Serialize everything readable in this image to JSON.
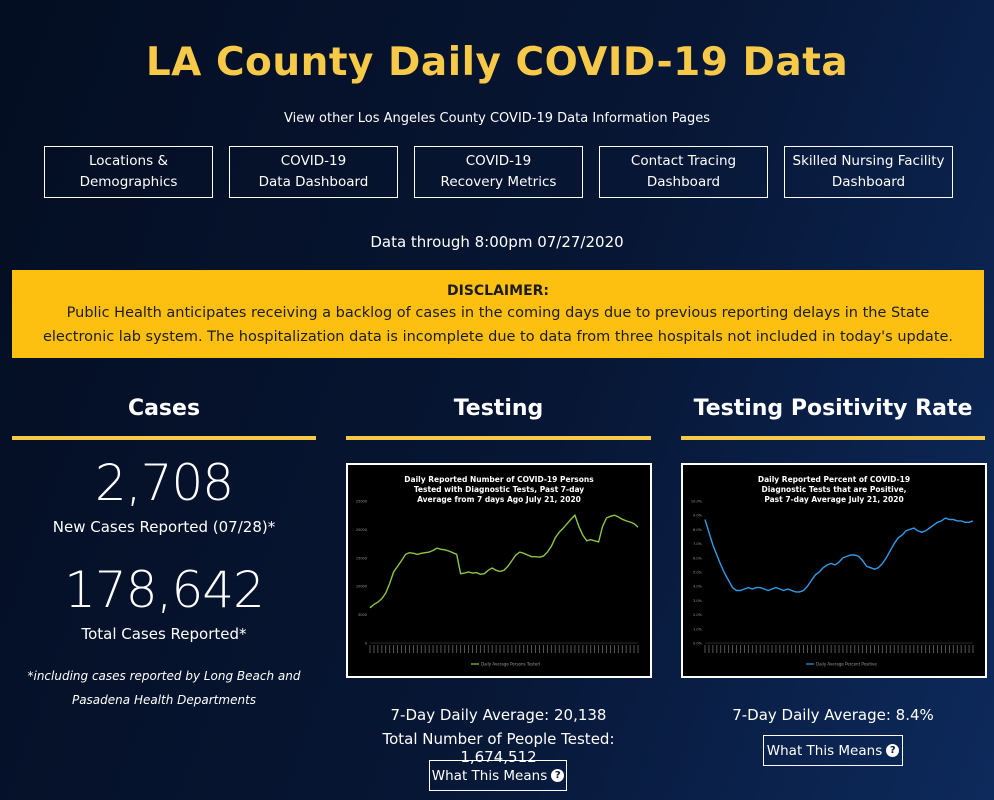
{
  "header": {
    "title": "LA County Daily COVID-19 Data",
    "subtitle": "View other Los Angeles County COVID-19 Data Information Pages"
  },
  "nav": [
    {
      "label": "Locations &\nDemographics"
    },
    {
      "label": "COVID-19\nData Dashboard"
    },
    {
      "label": "COVID-19\nRecovery Metrics"
    },
    {
      "label": "Contact Tracing\nDashboard"
    },
    {
      "label": "Skilled Nursing Facility\nDashboard"
    }
  ],
  "data_through": "Data through 8:00pm 07/27/2020",
  "disclaimer": {
    "heading": "DISCLAIMER:",
    "body": "Public Health anticipates receiving a backlog of cases in the coming days due to previous reporting delays in the State electronic lab system. The hospitalization data is incomplete due to data from three hospitals not included in today's update."
  },
  "cases": {
    "title": "Cases",
    "new_cases": "2,708",
    "new_cases_label": "New Cases Reported (07/28)*",
    "total_cases": "178,642",
    "total_cases_label": "Total Cases Reported*",
    "footnote": "*including cases reported by Long Beach and Pasadena Health Departments"
  },
  "testing": {
    "title": "Testing",
    "avg": "7-Day Daily Average: 20,138",
    "total": "Total Number of People Tested: 1,674,512",
    "button": "What This Means"
  },
  "positivity": {
    "title": "Testing Positivity Rate",
    "avg": "7-Day Daily Average: 8.4%",
    "button": "What This Means"
  },
  "chart_data": [
    {
      "type": "line",
      "title": "Daily Reported Number of COVID-19 Persons Tested with Diagnostic Tests, Past 7-day Average from 7 days Ago July 21, 2020",
      "color": "#8dc63f",
      "ylim": [
        0,
        25000
      ],
      "yticks": [
        "0",
        "5000",
        "10000",
        "15000",
        "20000",
        "25000"
      ],
      "series": [
        {
          "name": "Daily Average Persons Tested",
          "values": [
            6200,
            6800,
            7200,
            7800,
            8800,
            10500,
            12500,
            13500,
            14500,
            15600,
            15900,
            15800,
            15600,
            15800,
            15900,
            16000,
            16300,
            16700,
            16500,
            16400,
            16200,
            15900,
            15600,
            12200,
            12300,
            12500,
            12300,
            12400,
            12100,
            12200,
            12800,
            13200,
            12800,
            12600,
            12800,
            13500,
            14500,
            15500,
            16000,
            15800,
            15500,
            15200,
            15200,
            15100,
            15300,
            16000,
            17000,
            18500,
            19500,
            20200,
            21000,
            21800,
            22500,
            20500,
            19000,
            18000,
            18200,
            18000,
            17800,
            20500,
            22000,
            22300,
            22500,
            22200,
            21800,
            21500,
            21300,
            21000,
            20400
          ]
        }
      ]
    },
    {
      "type": "line",
      "title": "Daily Reported Percent of COVID-19 Diagnostic Tests that are Positive, Past 7-day Average July 21, 2020",
      "color": "#2f9be8",
      "ylim": [
        0,
        10
      ],
      "yticks": [
        "0.0%",
        "1.0%",
        "2.0%",
        "3.0%",
        "4.0%",
        "5.0%",
        "6.0%",
        "7.0%",
        "8.0%",
        "9.0%",
        "10.0%"
      ],
      "series": [
        {
          "name": "Daily Average Percent Positive",
          "values": [
            8.7,
            7.8,
            6.9,
            6.2,
            5.5,
            4.9,
            4.4,
            3.9,
            3.7,
            3.7,
            3.8,
            3.9,
            3.8,
            3.9,
            3.9,
            3.8,
            3.7,
            3.8,
            3.9,
            3.8,
            3.7,
            3.8,
            3.7,
            3.6,
            3.6,
            3.7,
            4.0,
            4.4,
            4.8,
            5.0,
            5.3,
            5.5,
            5.6,
            5.5,
            5.7,
            6.0,
            6.1,
            6.2,
            6.2,
            6.1,
            5.8,
            5.4,
            5.3,
            5.2,
            5.3,
            5.6,
            6.0,
            6.5,
            7.0,
            7.4,
            7.6,
            7.9,
            8.0,
            8.1,
            7.9,
            7.8,
            7.9,
            8.1,
            8.3,
            8.5,
            8.6,
            8.8,
            8.7,
            8.7,
            8.6,
            8.6,
            8.5,
            8.5,
            8.6
          ]
        }
      ]
    }
  ]
}
